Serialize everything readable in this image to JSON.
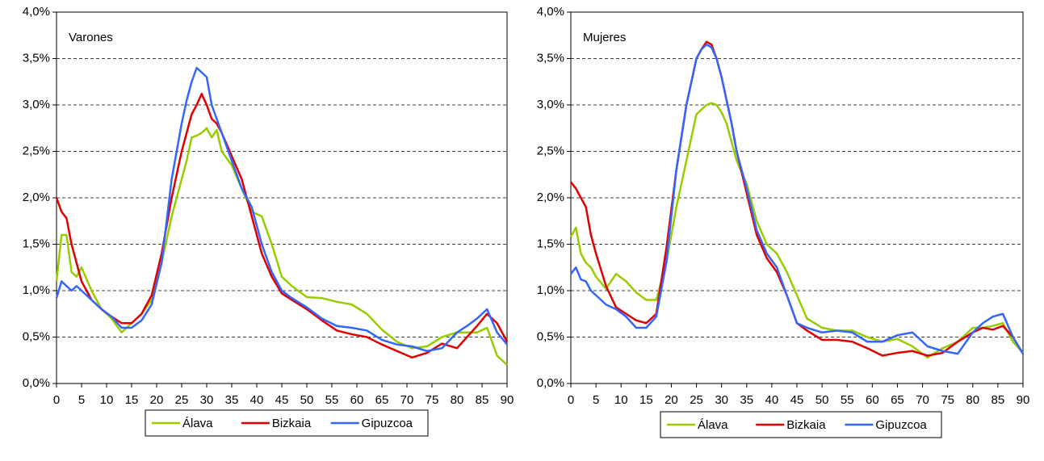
{
  "chart_data": [
    {
      "type": "line",
      "title": "Varones",
      "x": [
        0,
        1,
        2,
        3,
        4,
        5,
        7,
        9,
        11,
        13,
        15,
        17,
        19,
        21,
        23,
        25,
        26,
        27,
        28,
        29,
        30,
        31,
        32,
        33,
        35,
        37,
        39,
        41,
        43,
        45,
        47,
        50,
        53,
        56,
        59,
        62,
        65,
        68,
        71,
        74,
        77,
        80,
        82,
        84,
        86,
        88,
        90
      ],
      "series": [
        {
          "name": "Álava",
          "color": "#99cc00",
          "values": [
            1.1,
            1.6,
            1.6,
            1.2,
            1.15,
            1.25,
            1.0,
            0.8,
            0.7,
            0.55,
            0.65,
            0.75,
            0.9,
            1.3,
            1.8,
            2.2,
            2.4,
            2.65,
            2.67,
            2.7,
            2.75,
            2.65,
            2.73,
            2.5,
            2.35,
            2.1,
            1.85,
            1.8,
            1.5,
            1.15,
            1.05,
            0.93,
            0.92,
            0.88,
            0.85,
            0.75,
            0.58,
            0.45,
            0.38,
            0.4,
            0.5,
            0.55,
            0.55,
            0.55,
            0.6,
            0.3,
            0.2
          ]
        },
        {
          "name": "Bizkaia",
          "color": "#e00000",
          "values": [
            2.0,
            1.85,
            1.78,
            1.5,
            1.3,
            1.1,
            0.9,
            0.8,
            0.72,
            0.65,
            0.65,
            0.75,
            0.95,
            1.4,
            2.0,
            2.5,
            2.7,
            2.9,
            3.0,
            3.12,
            3.0,
            2.85,
            2.8,
            2.7,
            2.45,
            2.2,
            1.8,
            1.4,
            1.15,
            0.97,
            0.9,
            0.8,
            0.68,
            0.57,
            0.53,
            0.5,
            0.42,
            0.35,
            0.28,
            0.33,
            0.43,
            0.38,
            0.5,
            0.62,
            0.75,
            0.65,
            0.45
          ]
        },
        {
          "name": "Gipuzcoa",
          "color": "#3366ff",
          "values": [
            0.92,
            1.1,
            1.05,
            1.0,
            1.05,
            1.0,
            0.9,
            0.8,
            0.72,
            0.6,
            0.6,
            0.68,
            0.85,
            1.3,
            2.2,
            2.8,
            3.05,
            3.25,
            3.4,
            3.35,
            3.3,
            3.0,
            2.85,
            2.7,
            2.4,
            2.1,
            1.9,
            1.5,
            1.2,
            1.0,
            0.92,
            0.82,
            0.7,
            0.62,
            0.6,
            0.57,
            0.47,
            0.42,
            0.4,
            0.35,
            0.38,
            0.55,
            0.62,
            0.7,
            0.8,
            0.55,
            0.42
          ]
        }
      ],
      "xlim": [
        0,
        90
      ],
      "xticks": [
        0,
        5,
        10,
        15,
        20,
        25,
        30,
        35,
        40,
        45,
        50,
        55,
        60,
        65,
        70,
        75,
        80,
        85,
        90
      ],
      "ylim": [
        0,
        4
      ],
      "yticks": [
        {
          "value": 0,
          "label": "0,0%"
        },
        {
          "value": 0.5,
          "label": "0,5%"
        },
        {
          "value": 1,
          "label": "1,0%"
        },
        {
          "value": 1.5,
          "label": "1,5%"
        },
        {
          "value": 2,
          "label": "2,0%"
        },
        {
          "value": 2.5,
          "label": "2,5%"
        },
        {
          "value": 3,
          "label": "3,0%"
        },
        {
          "value": 3.5,
          "label": "3,5%"
        },
        {
          "value": 4,
          "label": "4,0%"
        }
      ],
      "grid": true,
      "legend": "bottom"
    },
    {
      "type": "line",
      "title": "Mujeres",
      "x": [
        0,
        1,
        2,
        3,
        4,
        5,
        7,
        9,
        11,
        13,
        15,
        17,
        19,
        21,
        23,
        25,
        26,
        27,
        28,
        29,
        30,
        31,
        32,
        33,
        35,
        37,
        39,
        41,
        43,
        45,
        47,
        50,
        53,
        56,
        59,
        62,
        65,
        68,
        71,
        74,
        77,
        80,
        82,
        84,
        86,
        88,
        90
      ],
      "series": [
        {
          "name": "Álava",
          "color": "#99cc00",
          "values": [
            1.58,
            1.68,
            1.4,
            1.3,
            1.25,
            1.15,
            1.02,
            1.18,
            1.1,
            0.98,
            0.9,
            0.9,
            1.3,
            1.9,
            2.4,
            2.9,
            2.95,
            3.0,
            3.02,
            3.0,
            2.92,
            2.8,
            2.6,
            2.4,
            2.15,
            1.75,
            1.5,
            1.4,
            1.2,
            0.95,
            0.7,
            0.6,
            0.57,
            0.57,
            0.5,
            0.45,
            0.48,
            0.4,
            0.28,
            0.38,
            0.45,
            0.6,
            0.6,
            0.62,
            0.65,
            0.45,
            0.33
          ]
        },
        {
          "name": "Bizkaia",
          "color": "#e00000",
          "values": [
            2.17,
            2.1,
            2.0,
            1.9,
            1.6,
            1.4,
            1.05,
            0.82,
            0.75,
            0.68,
            0.65,
            0.75,
            1.45,
            2.3,
            3.0,
            3.5,
            3.6,
            3.68,
            3.65,
            3.5,
            3.3,
            3.05,
            2.8,
            2.5,
            2.05,
            1.6,
            1.35,
            1.2,
            0.95,
            0.65,
            0.57,
            0.47,
            0.47,
            0.45,
            0.38,
            0.3,
            0.33,
            0.35,
            0.3,
            0.33,
            0.45,
            0.55,
            0.6,
            0.58,
            0.62,
            0.5,
            0.32
          ]
        },
        {
          "name": "Gipuzcoa",
          "color": "#3366ff",
          "values": [
            1.18,
            1.25,
            1.12,
            1.1,
            1.0,
            0.95,
            0.85,
            0.8,
            0.72,
            0.6,
            0.6,
            0.72,
            1.3,
            2.3,
            3.0,
            3.5,
            3.6,
            3.65,
            3.62,
            3.5,
            3.3,
            3.05,
            2.8,
            2.5,
            2.1,
            1.65,
            1.4,
            1.25,
            0.95,
            0.65,
            0.6,
            0.55,
            0.57,
            0.55,
            0.45,
            0.45,
            0.52,
            0.55,
            0.4,
            0.35,
            0.32,
            0.55,
            0.65,
            0.72,
            0.75,
            0.5,
            0.32
          ]
        }
      ],
      "xlim": [
        0,
        90
      ],
      "xticks": [
        0,
        5,
        10,
        15,
        20,
        25,
        30,
        35,
        40,
        45,
        50,
        55,
        60,
        65,
        70,
        75,
        80,
        85,
        90
      ],
      "ylim": [
        0,
        4
      ],
      "yticks": [
        {
          "value": 0,
          "label": "0,0%"
        },
        {
          "value": 0.5,
          "label": "0,5%"
        },
        {
          "value": 1,
          "label": "1,0%"
        },
        {
          "value": 1.5,
          "label": "1,5%"
        },
        {
          "value": 2,
          "label": "2,0%"
        },
        {
          "value": 2.5,
          "label": "2,5%"
        },
        {
          "value": 3,
          "label": "3,0%"
        },
        {
          "value": 3.5,
          "label": "3,5%"
        },
        {
          "value": 4,
          "label": "4,0%"
        }
      ],
      "grid": true,
      "legend": "bottom"
    }
  ]
}
